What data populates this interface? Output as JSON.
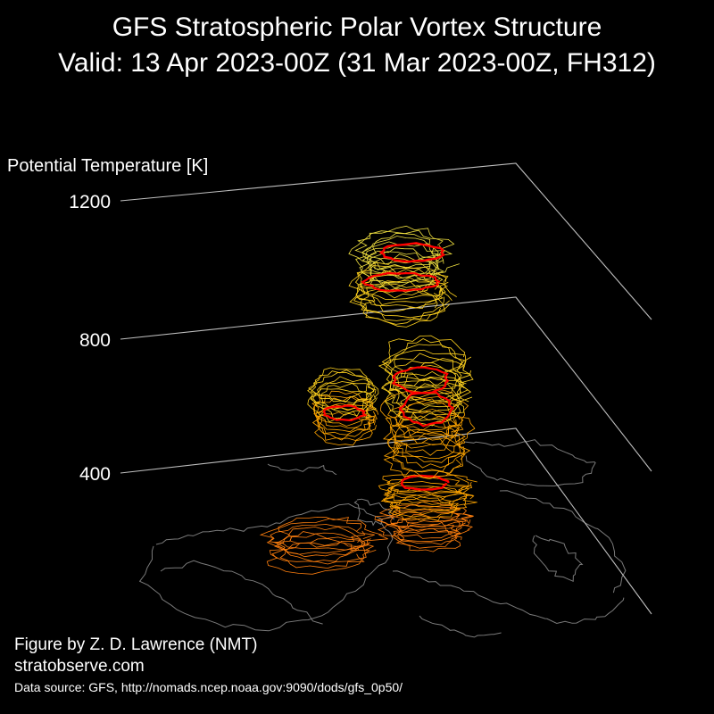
{
  "title_line_1": "GFS Stratospheric Polar Vortex Structure",
  "title_line_2": "Valid: 13 Apr 2023-00Z  (31 Mar 2023-00Z, FH312)",
  "credits": {
    "line_1": "Figure by Z. D. Lawrence (NMT)",
    "line_2": "stratobserve.com",
    "data_source": "Data source: GFS, http://nomads.ncep.noaa.gov:9090/dods/gfs_0p50/"
  },
  "chart_data": {
    "type": "3d-contour-stack",
    "zlabel": "Potential Temperature [K]",
    "z_ticks": [
      400,
      800,
      1200
    ],
    "vortex_edge_color": "#ff0000",
    "layer_colors": [
      "#ff7f0e",
      "#ffa500",
      "#ffd21e",
      "#f0e040"
    ],
    "basemap_color": "#7a7a7a"
  }
}
